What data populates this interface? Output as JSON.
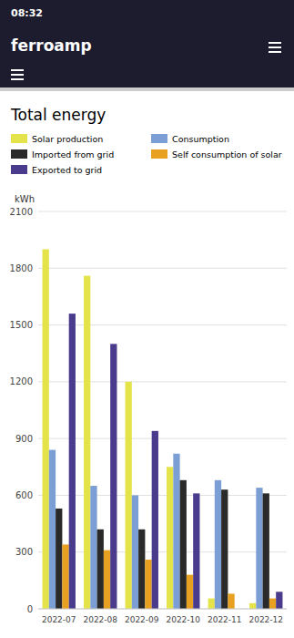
{
  "chart_data": {
    "type": "bar",
    "title": "Total energy",
    "y_label": "kWh",
    "annotations": [
      "08:32",
      "ferroamp"
    ],
    "categories": [
      "2022-07",
      "2022-08",
      "2022-09",
      "2022-10",
      "2022-11",
      "2022-12"
    ],
    "series": [
      {
        "name": "Solar production",
        "color": "#e4e44a",
        "values": [
          1900,
          1760,
          1200,
          750,
          55,
          30
        ]
      },
      {
        "name": "Consumption",
        "color": "#7b9fd4",
        "values": [
          840,
          650,
          600,
          820,
          680,
          640
        ]
      },
      {
        "name": "Imported from grid",
        "color": "#2a2a2a",
        "values": [
          530,
          420,
          420,
          680,
          630,
          610
        ]
      },
      {
        "name": "Self consumption of solar",
        "color": "#e8a020",
        "values": [
          340,
          310,
          260,
          180,
          80,
          55
        ]
      },
      {
        "name": "Exported to grid",
        "color": "#4b3b8c",
        "values": [
          1560,
          1400,
          940,
          610,
          0,
          90
        ]
      }
    ],
    "ylim": [
      0,
      2100
    ],
    "yticks": [
      0,
      300,
      600,
      900,
      1200,
      1500,
      1800,
      2100
    ],
    "grid": true,
    "legend": "top"
  }
}
